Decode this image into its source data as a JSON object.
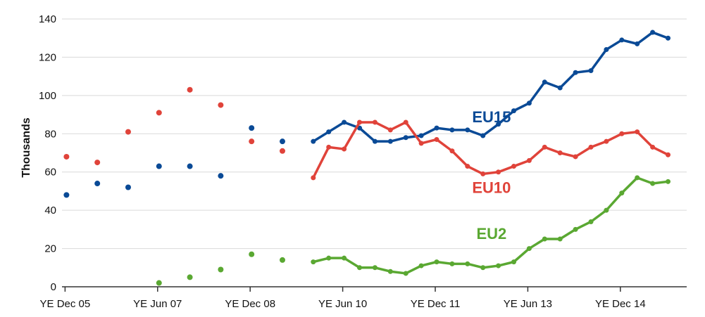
{
  "chart_data": {
    "type": "line",
    "ylabel": "Thousands",
    "xlabel": "",
    "ylim": [
      0,
      140
    ],
    "y_ticks": [
      "0",
      "20",
      "40",
      "60",
      "80",
      "100",
      "120",
      "140"
    ],
    "y_tick_values": [
      0,
      20,
      40,
      60,
      80,
      100,
      120,
      140
    ],
    "x_tick_labels": [
      "YE Dec 05",
      "YE Jun 07",
      "YE Dec 08",
      "YE Jun 10",
      "YE Dec 11",
      "YE Jun 13",
      "YE Dec 14"
    ],
    "x_tick_positions": [
      0,
      6,
      12,
      18,
      24,
      30,
      36
    ],
    "x_range": [
      0,
      40
    ],
    "grid": "horizontal",
    "note": "Quarterly data points; early period (index 0-14) shown as unconnected annual/semi-annual markers, later period as connected quarterly lines.",
    "series": [
      {
        "name": "EU15",
        "color": "#0a4a96",
        "label_anchor": {
          "x": 25.5,
          "y": 86
        },
        "scatter": [
          [
            0,
            48
          ],
          [
            2,
            54
          ],
          [
            4,
            52
          ],
          [
            6,
            63
          ],
          [
            8,
            63
          ],
          [
            10,
            58
          ],
          [
            12,
            83
          ],
          [
            14,
            76
          ]
        ],
        "line": [
          [
            16,
            76
          ],
          [
            17,
            81
          ],
          [
            18,
            86
          ],
          [
            19,
            83
          ],
          [
            20,
            76
          ],
          [
            21,
            76
          ],
          [
            22,
            78
          ],
          [
            23,
            79
          ],
          [
            24,
            83
          ],
          [
            25,
            82
          ],
          [
            26,
            82
          ],
          [
            27,
            79
          ],
          [
            28,
            85
          ],
          [
            29,
            92
          ],
          [
            30,
            96
          ],
          [
            31,
            107
          ],
          [
            32,
            104
          ],
          [
            33,
            112
          ],
          [
            34,
            113
          ],
          [
            35,
            124
          ],
          [
            36,
            129
          ],
          [
            37,
            127
          ],
          [
            38,
            133
          ],
          [
            39,
            130
          ]
        ]
      },
      {
        "name": "EU10",
        "color": "#e0433a",
        "label_anchor": {
          "x": 25.5,
          "y": 49
        },
        "scatter": [
          [
            0,
            68
          ],
          [
            2,
            65
          ],
          [
            4,
            81
          ],
          [
            6,
            91
          ],
          [
            8,
            103
          ],
          [
            10,
            95
          ],
          [
            12,
            76
          ],
          [
            14,
            71
          ]
        ],
        "line": [
          [
            16,
            57
          ],
          [
            17,
            73
          ],
          [
            18,
            72
          ],
          [
            19,
            86
          ],
          [
            20,
            86
          ],
          [
            21,
            82
          ],
          [
            22,
            86
          ],
          [
            23,
            75
          ],
          [
            24,
            77
          ],
          [
            25,
            71
          ],
          [
            26,
            63
          ],
          [
            27,
            59
          ],
          [
            28,
            60
          ],
          [
            29,
            63
          ],
          [
            30,
            66
          ],
          [
            31,
            73
          ],
          [
            32,
            70
          ],
          [
            33,
            68
          ],
          [
            34,
            73
          ],
          [
            35,
            76
          ],
          [
            36,
            80
          ],
          [
            37,
            81
          ],
          [
            38,
            73
          ],
          [
            39,
            69
          ]
        ]
      },
      {
        "name": "EU2",
        "color": "#5aa832",
        "label_anchor": {
          "x": 25.5,
          "y": 25
        },
        "scatter": [
          [
            6,
            2
          ],
          [
            8,
            5
          ],
          [
            10,
            9
          ],
          [
            12,
            17
          ],
          [
            14,
            14
          ]
        ],
        "line": [
          [
            16,
            13
          ],
          [
            17,
            15
          ],
          [
            18,
            15
          ],
          [
            19,
            10
          ],
          [
            20,
            10
          ],
          [
            21,
            8
          ],
          [
            22,
            7
          ],
          [
            23,
            11
          ],
          [
            24,
            13
          ],
          [
            25,
            12
          ],
          [
            26,
            12
          ],
          [
            27,
            10
          ],
          [
            28,
            11
          ],
          [
            29,
            13
          ],
          [
            30,
            20
          ],
          [
            31,
            25
          ],
          [
            32,
            25
          ],
          [
            33,
            30
          ],
          [
            34,
            34
          ],
          [
            35,
            40
          ],
          [
            36,
            49
          ],
          [
            37,
            57
          ],
          [
            38,
            54
          ],
          [
            39,
            55
          ]
        ]
      }
    ]
  }
}
